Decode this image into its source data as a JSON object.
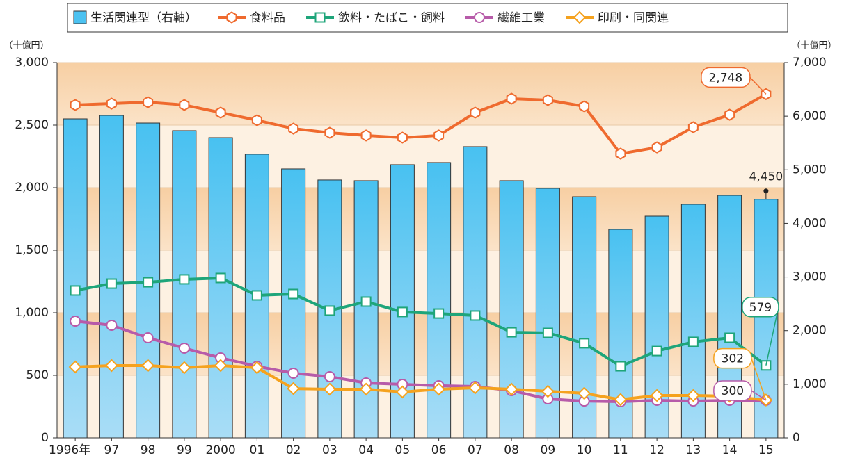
{
  "chart_data": {
    "type": "combo",
    "y_label": "（十億円）",
    "y2_label": "（十億円）",
    "categories": [
      "1996年",
      "97",
      "98",
      "99",
      "2000",
      "01",
      "02",
      "03",
      "04",
      "05",
      "06",
      "07",
      "08",
      "09",
      "10",
      "11",
      "12",
      "13",
      "14",
      "15"
    ],
    "ylim": [
      0,
      3000
    ],
    "yticks": [
      0,
      500,
      {
        "value": 1000,
        "label": "1,000"
      },
      {
        "value": 1500,
        "label": "1,500"
      },
      {
        "value": 2000,
        "label": "2,000"
      },
      {
        "value": 2500,
        "label": "2,500"
      },
      {
        "value": 3000,
        "label": "3,000"
      }
    ],
    "y2lim": [
      0,
      7000
    ],
    "y2ticks": [
      0,
      {
        "value": 1000,
        "label": "1,000"
      },
      {
        "value": 2000,
        "label": "2,000"
      },
      {
        "value": 3000,
        "label": "3,000"
      },
      {
        "value": 4000,
        "label": "4,000"
      },
      {
        "value": 5000,
        "label": "5,000"
      },
      {
        "value": 6000,
        "label": "6,000"
      },
      {
        "value": 7000,
        "label": "7,000"
      }
    ],
    "series": [
      {
        "name": "生活関連型（右軸）",
        "type": "bar",
        "axis": "y2",
        "color": "#4cc2f1",
        "values": [
          5950,
          6015,
          5872,
          5730,
          5600,
          5290,
          5017,
          4810,
          4797,
          5095,
          5134,
          5432,
          4797,
          4654,
          4498,
          3889,
          4135,
          4356,
          4524,
          4450
        ],
        "value_labels": [
          null,
          null,
          null,
          null,
          null,
          null,
          null,
          null,
          null,
          null,
          null,
          null,
          null,
          null,
          null,
          null,
          null,
          null,
          null,
          "4,450"
        ]
      },
      {
        "name": "食料品",
        "type": "line",
        "marker": "hexagon",
        "color": "#ef6a2e",
        "values": [
          2661,
          2672,
          2683,
          2661,
          2600,
          2539,
          2472,
          2439,
          2417,
          2400,
          2417,
          2600,
          2711,
          2700,
          2650,
          2272,
          2322,
          2483,
          2583,
          2748
        ],
        "value_labels": [
          null,
          null,
          null,
          null,
          null,
          null,
          null,
          null,
          null,
          null,
          null,
          null,
          null,
          null,
          null,
          null,
          null,
          null,
          null,
          "2,748"
        ]
      },
      {
        "name": "飲料・たばこ・飼料",
        "type": "line",
        "marker": "square",
        "color": "#1ea57a",
        "values": [
          1178,
          1233,
          1244,
          1267,
          1278,
          1139,
          1150,
          1017,
          1089,
          1006,
          994,
          978,
          844,
          839,
          756,
          572,
          694,
          767,
          800,
          579
        ]
      },
      {
        "name": "繊維工業",
        "type": "line",
        "marker": "circle",
        "color": "#b75ba9",
        "values": [
          933,
          900,
          800,
          717,
          639,
          572,
          517,
          489,
          439,
          428,
          417,
          411,
          378,
          311,
          294,
          289,
          300,
          294,
          300,
          300
        ]
      },
      {
        "name": "印刷・同関連",
        "type": "line",
        "marker": "diamond",
        "color": "#f5a21e",
        "values": [
          567,
          578,
          578,
          561,
          578,
          561,
          394,
          389,
          389,
          367,
          389,
          400,
          389,
          372,
          356,
          306,
          339,
          339,
          333,
          302
        ]
      }
    ]
  }
}
